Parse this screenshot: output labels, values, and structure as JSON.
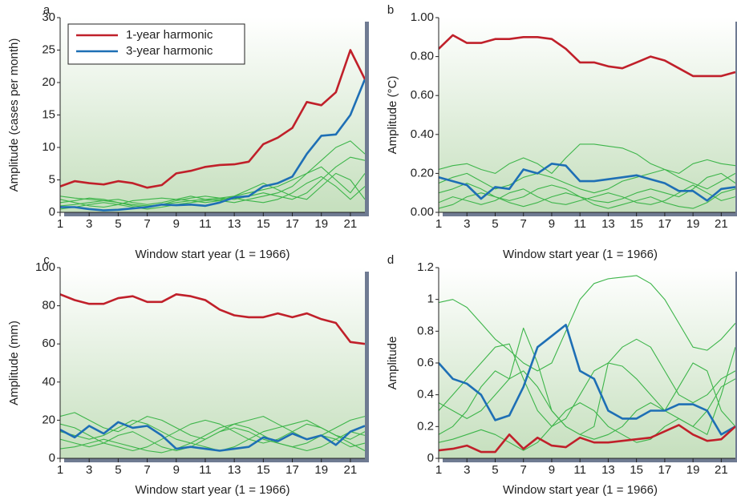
{
  "chart_data": [
    {
      "type": "line",
      "label": "a",
      "ylabel": "Amplitude (cases per month)",
      "xlabel": "Window start year (1 = 1966)",
      "legend": "upper left",
      "x": [
        1,
        2,
        3,
        4,
        5,
        6,
        7,
        8,
        9,
        10,
        11,
        12,
        13,
        14,
        15,
        16,
        17,
        18,
        19,
        20,
        21,
        22
      ],
      "xlim": [
        1,
        22
      ],
      "xticks": [
        1,
        3,
        5,
        7,
        9,
        11,
        13,
        15,
        17,
        19,
        21
      ],
      "ylim": [
        0,
        30
      ],
      "yticks": [
        0,
        5,
        10,
        15,
        20,
        25,
        30
      ],
      "series": [
        {
          "name": "1-year harmonic",
          "color": "#c0202a",
          "values": [
            4,
            4.8,
            4.5,
            4.3,
            4.8,
            4.5,
            3.8,
            4.2,
            6,
            6.4,
            7,
            7.3,
            7.4,
            7.8,
            10.5,
            11.5,
            13,
            17,
            16.5,
            18.5,
            25,
            20.5
          ]
        },
        {
          "name": "3-year harmonic",
          "color": "#1e6fb5",
          "values": [
            0.8,
            0.8,
            0.5,
            0.3,
            0.4,
            0.6,
            0.8,
            1.2,
            1.1,
            1.2,
            1,
            1.5,
            2.3,
            2.5,
            4,
            4.5,
            5.5,
            9,
            11.8,
            12,
            15,
            20.5
          ]
        },
        {
          "color": "#3db54a",
          "values": [
            2.5,
            2.2,
            2,
            1.8,
            1.5,
            1.2,
            1,
            1.2,
            1.5,
            1.8,
            2,
            2.2,
            2.5,
            3,
            3.5,
            4,
            5,
            6,
            8,
            10,
            11,
            9
          ]
        },
        {
          "color": "#3db54a",
          "values": [
            1.5,
            1.8,
            2.2,
            2,
            1.5,
            1,
            0.8,
            1.2,
            1.8,
            2.2,
            2.5,
            2.2,
            2,
            2.5,
            3,
            2.5,
            2,
            3,
            5,
            7,
            8.5,
            8
          ]
        },
        {
          "color": "#3db54a",
          "values": [
            1,
            1.2,
            1.5,
            1.8,
            2,
            1.5,
            1.2,
            1.5,
            2,
            2.5,
            2,
            1.8,
            1.5,
            2,
            2.5,
            3,
            4,
            6,
            7,
            5,
            3,
            6
          ]
        },
        {
          "color": "#3db54a",
          "values": [
            2,
            1.5,
            1,
            0.8,
            1.2,
            1.8,
            2,
            2.2,
            2,
            1.8,
            1.5,
            1.8,
            2.5,
            3.5,
            4.5,
            3.5,
            2.5,
            2,
            4,
            6,
            5,
            2
          ]
        },
        {
          "color": "#3db54a",
          "values": [
            0.5,
            0.8,
            1.2,
            1.5,
            1.2,
            0.8,
            0.5,
            0.8,
            1.2,
            1.5,
            1.8,
            2,
            2.2,
            1.8,
            1.5,
            2,
            3,
            4.5,
            5.5,
            4,
            2,
            4
          ]
        }
      ]
    },
    {
      "type": "line",
      "label": "b",
      "ylabel": "Amplitude (°C)",
      "xlabel": "Window start year (1 = 1966)",
      "x": [
        1,
        2,
        3,
        4,
        5,
        6,
        7,
        8,
        9,
        10,
        11,
        12,
        13,
        14,
        15,
        16,
        17,
        18,
        19,
        20,
        21,
        22
      ],
      "xlim": [
        1,
        22
      ],
      "xticks": [
        1,
        3,
        5,
        7,
        9,
        11,
        13,
        15,
        17,
        19,
        21
      ],
      "ylim": [
        0,
        1
      ],
      "yticks": [
        {
          "value": 0,
          "label": "0.00"
        },
        {
          "value": 0.2,
          "label": "0.20"
        },
        {
          "value": 0.4,
          "label": "0.40"
        },
        {
          "value": 0.6,
          "label": "0.60"
        },
        {
          "value": 0.8,
          "label": "0.80"
        },
        {
          "value": 1,
          "label": "1.00"
        }
      ],
      "series": [
        {
          "name": "1-year harmonic",
          "color": "#c0202a",
          "values": [
            0.84,
            0.91,
            0.87,
            0.87,
            0.89,
            0.89,
            0.9,
            0.9,
            0.89,
            0.84,
            0.77,
            0.77,
            0.75,
            0.74,
            0.77,
            0.8,
            0.78,
            0.74,
            0.7,
            0.7,
            0.7,
            0.72
          ]
        },
        {
          "name": "3-year harmonic",
          "color": "#1e6fb5",
          "values": [
            0.18,
            0.16,
            0.14,
            0.07,
            0.13,
            0.12,
            0.22,
            0.2,
            0.25,
            0.24,
            0.16,
            0.16,
            0.17,
            0.18,
            0.19,
            0.17,
            0.15,
            0.11,
            0.11,
            0.06,
            0.12,
            0.13
          ]
        },
        {
          "color": "#3db54a",
          "values": [
            0.22,
            0.24,
            0.25,
            0.22,
            0.2,
            0.25,
            0.28,
            0.25,
            0.2,
            0.28,
            0.35,
            0.35,
            0.34,
            0.33,
            0.3,
            0.25,
            0.22,
            0.2,
            0.25,
            0.27,
            0.25,
            0.24
          ]
        },
        {
          "color": "#3db54a",
          "values": [
            0.1,
            0.12,
            0.15,
            0.12,
            0.08,
            0.06,
            0.08,
            0.12,
            0.14,
            0.12,
            0.08,
            0.06,
            0.05,
            0.07,
            0.1,
            0.12,
            0.1,
            0.08,
            0.12,
            0.18,
            0.2,
            0.15
          ]
        },
        {
          "color": "#3db54a",
          "values": [
            0.05,
            0.08,
            0.06,
            0.04,
            0.06,
            0.1,
            0.12,
            0.08,
            0.05,
            0.04,
            0.06,
            0.08,
            0.1,
            0.08,
            0.05,
            0.04,
            0.06,
            0.1,
            0.14,
            0.1,
            0.06,
            0.08
          ]
        },
        {
          "color": "#3db54a",
          "values": [
            0.15,
            0.18,
            0.2,
            0.16,
            0.12,
            0.14,
            0.18,
            0.2,
            0.18,
            0.15,
            0.12,
            0.1,
            0.12,
            0.16,
            0.18,
            0.2,
            0.22,
            0.18,
            0.15,
            0.12,
            0.16,
            0.2
          ]
        },
        {
          "color": "#3db54a",
          "values": [
            0.02,
            0.04,
            0.08,
            0.1,
            0.08,
            0.05,
            0.03,
            0.05,
            0.08,
            0.1,
            0.08,
            0.04,
            0.02,
            0.04,
            0.06,
            0.08,
            0.05,
            0.03,
            0.02,
            0.05,
            0.1,
            0.12
          ]
        }
      ]
    },
    {
      "type": "line",
      "label": "c",
      "ylabel": "Amplitude (mm)",
      "xlabel": "Window start year (1 = 1966)",
      "x": [
        1,
        2,
        3,
        4,
        5,
        6,
        7,
        8,
        9,
        10,
        11,
        12,
        13,
        14,
        15,
        16,
        17,
        18,
        19,
        20,
        21,
        22
      ],
      "xlim": [
        1,
        22
      ],
      "xticks": [
        1,
        3,
        5,
        7,
        9,
        11,
        13,
        15,
        17,
        19,
        21
      ],
      "ylim": [
        0,
        100
      ],
      "yticks": [
        0,
        20,
        40,
        60,
        80,
        100
      ],
      "series": [
        {
          "name": "1-year harmonic",
          "color": "#c0202a",
          "values": [
            86,
            83,
            81,
            81,
            84,
            85,
            82,
            82,
            86,
            85,
            83,
            78,
            75,
            74,
            74,
            76,
            74,
            76,
            73,
            71,
            61,
            60
          ]
        },
        {
          "name": "3-year harmonic",
          "color": "#1e6fb5",
          "values": [
            15,
            11,
            17,
            13,
            19,
            16,
            17,
            12,
            5,
            6,
            5,
            4,
            5,
            6,
            11,
            9,
            13,
            10,
            12,
            7,
            14,
            17
          ]
        },
        {
          "color": "#3db54a",
          "values": [
            22,
            24,
            20,
            16,
            14,
            18,
            22,
            20,
            16,
            12,
            10,
            14,
            18,
            20,
            22,
            18,
            14,
            10,
            12,
            16,
            20,
            22
          ]
        },
        {
          "color": "#3db54a",
          "values": [
            10,
            8,
            6,
            8,
            12,
            14,
            10,
            6,
            4,
            6,
            10,
            14,
            16,
            14,
            10,
            8,
            6,
            8,
            12,
            10,
            6,
            8
          ]
        },
        {
          "color": "#3db54a",
          "values": [
            18,
            16,
            12,
            8,
            6,
            4,
            6,
            10,
            14,
            18,
            20,
            18,
            14,
            10,
            8,
            10,
            14,
            18,
            16,
            12,
            10,
            14
          ]
        },
        {
          "color": "#3db54a",
          "values": [
            5,
            6,
            8,
            10,
            8,
            6,
            4,
            3,
            5,
            8,
            12,
            16,
            18,
            16,
            12,
            8,
            6,
            4,
            6,
            10,
            14,
            12
          ]
        },
        {
          "color": "#3db54a",
          "values": [
            14,
            12,
            10,
            12,
            16,
            20,
            18,
            14,
            10,
            8,
            6,
            4,
            6,
            10,
            14,
            16,
            18,
            20,
            16,
            12,
            8,
            4
          ]
        }
      ]
    },
    {
      "type": "line",
      "label": "d",
      "ylabel": "Amplitude",
      "xlabel": "Window start year (1 = 1966)",
      "x": [
        1,
        2,
        3,
        4,
        5,
        6,
        7,
        8,
        9,
        10,
        11,
        12,
        13,
        14,
        15,
        16,
        17,
        18,
        19,
        20,
        21,
        22
      ],
      "xlim": [
        1,
        22
      ],
      "xticks": [
        1,
        3,
        5,
        7,
        9,
        11,
        13,
        15,
        17,
        19,
        21
      ],
      "ylim": [
        0,
        1.2
      ],
      "yticks": [
        0,
        0.2,
        0.4,
        0.6,
        0.8,
        1,
        1.2
      ],
      "series": [
        {
          "name": "1-year harmonic",
          "color": "#c0202a",
          "values": [
            0.05,
            0.06,
            0.08,
            0.04,
            0.04,
            0.15,
            0.06,
            0.13,
            0.08,
            0.07,
            0.13,
            0.1,
            0.1,
            0.11,
            0.12,
            0.13,
            0.17,
            0.21,
            0.15,
            0.11,
            0.12,
            0.2
          ]
        },
        {
          "name": "3-year harmonic",
          "color": "#1e6fb5",
          "values": [
            0.6,
            0.5,
            0.47,
            0.4,
            0.24,
            0.27,
            0.45,
            0.7,
            0.77,
            0.84,
            0.55,
            0.5,
            0.3,
            0.25,
            0.25,
            0.3,
            0.3,
            0.34,
            0.34,
            0.3,
            0.15,
            0.2
          ]
        },
        {
          "color": "#3db54a",
          "values": [
            0.98,
            1,
            0.95,
            0.85,
            0.75,
            0.68,
            0.6,
            0.55,
            0.6,
            0.8,
            1,
            1.1,
            1.13,
            1.14,
            1.15,
            1.1,
            1,
            0.85,
            0.7,
            0.68,
            0.75,
            0.85
          ]
        },
        {
          "color": "#3db54a",
          "values": [
            0.3,
            0.4,
            0.5,
            0.6,
            0.7,
            0.72,
            0.5,
            0.3,
            0.2,
            0.25,
            0.4,
            0.55,
            0.6,
            0.58,
            0.5,
            0.4,
            0.3,
            0.45,
            0.6,
            0.55,
            0.3,
            0.2
          ]
        },
        {
          "color": "#3db54a",
          "values": [
            0.15,
            0.2,
            0.3,
            0.45,
            0.55,
            0.5,
            0.82,
            0.6,
            0.3,
            0.2,
            0.15,
            0.12,
            0.15,
            0.2,
            0.3,
            0.35,
            0.3,
            0.25,
            0.2,
            0.3,
            0.45,
            0.5
          ]
        },
        {
          "color": "#3db54a",
          "values": [
            0.35,
            0.3,
            0.25,
            0.3,
            0.4,
            0.5,
            0.55,
            0.45,
            0.3,
            0.2,
            0.15,
            0.2,
            0.6,
            0.7,
            0.75,
            0.7,
            0.55,
            0.4,
            0.35,
            0.4,
            0.5,
            0.55
          ]
        },
        {
          "color": "#3db54a",
          "values": [
            0.1,
            0.12,
            0.15,
            0.18,
            0.15,
            0.1,
            0.05,
            0.1,
            0.2,
            0.3,
            0.35,
            0.3,
            0.2,
            0.15,
            0.1,
            0.12,
            0.2,
            0.25,
            0.2,
            0.15,
            0.4,
            0.7
          ]
        }
      ]
    }
  ]
}
